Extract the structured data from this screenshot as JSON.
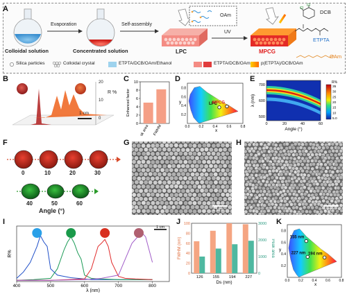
{
  "panels": {
    "a": "A",
    "b": "B",
    "c": "C",
    "d": "D",
    "e": "E",
    "f": "F",
    "g": "G",
    "h": "H",
    "i": "I",
    "j": "J",
    "k": "K"
  },
  "schematic": {
    "step1": "Colloidal solution",
    "arrow1": "Evaporation",
    "step2": "Concentrated solution",
    "arrow2": "Self-assembly",
    "step3": "LPC",
    "arrow3": "UV",
    "step4": "MPCG",
    "oam_inset": "OAm",
    "dcb": "DCB",
    "etpta": "ETPTA",
    "oam": "OAm",
    "legend": [
      {
        "label": "Silica particles"
      },
      {
        "label": "Colloidal crystal"
      },
      {
        "label": "ETPTA/DCB/OAm/Ethanol",
        "color": "#9ed3ee"
      },
      {
        "label": "ETPTA/DCB/OAm",
        "color": "#e13c3c"
      },
      {
        "label": "p(ETPTA)/DCB/OAm",
        "color": "#f0a020"
      }
    ]
  },
  "panel_b": {
    "ylabel": "R %",
    "scale": "1 cm",
    "ticks": [
      "20",
      "10",
      "0"
    ]
  },
  "chart_data": [
    {
      "id": "C",
      "type": "bar",
      "categories": [
        "Peak area",
        "FWHM"
      ],
      "values": [
        5.0,
        8.2
      ],
      "ylabel": "Enhanced factor",
      "ylim": [
        0,
        10
      ],
      "yticks": [
        "0",
        "2",
        "4",
        "6",
        "8",
        "10"
      ],
      "color": "#f59f86"
    },
    {
      "id": "D",
      "type": "scatter",
      "xlabel": "x",
      "ylabel": "y",
      "points": [
        {
          "label": "LPC",
          "x": 0.46,
          "y": 0.36
        },
        {
          "label": "MPCG",
          "x": 0.57,
          "y": 0.38
        }
      ],
      "xticks": [
        "0.0",
        "0.2",
        "0.4",
        "0.6",
        "0.8"
      ],
      "yticks": [
        "0.2",
        "0.4",
        "0.6",
        "0.8"
      ]
    },
    {
      "id": "E",
      "type": "heatmap",
      "xlabel": "Angle (°)",
      "ylabel": "λ (nm)",
      "xticks": [
        "0",
        "20",
        "40",
        "60"
      ],
      "yticks": [
        "700",
        "600",
        "500"
      ],
      "colorbar_title": "R%",
      "colorbar_ticks": [
        "35",
        "30",
        "25",
        "20",
        "15",
        "10",
        "5.0"
      ]
    },
    {
      "id": "I",
      "type": "line",
      "xlabel": "λ (nm)",
      "ylabel": "R%",
      "xticks": [
        "400",
        "500",
        "600",
        "700",
        "800"
      ],
      "scale": "1 cm",
      "series": [
        {
          "color": "#1f4fc8",
          "x": [
            400,
            420,
            440,
            460,
            470,
            480,
            490,
            500,
            520,
            540,
            560,
            580,
            600,
            620,
            650,
            700,
            750,
            800
          ],
          "y": [
            0.05,
            0.15,
            0.3,
            0.55,
            0.72,
            0.62,
            0.55,
            0.2,
            0.1,
            0.08,
            0.06,
            0.05,
            0.04,
            0.03,
            0.03,
            0.03,
            0.03,
            0.03
          ]
        },
        {
          "color": "#1a9a55",
          "x": [
            400,
            450,
            500,
            520,
            540,
            550,
            560,
            570,
            580,
            590,
            600,
            620,
            650,
            700,
            750,
            800
          ],
          "y": [
            0.02,
            0.03,
            0.05,
            0.2,
            0.5,
            0.62,
            0.7,
            0.6,
            0.45,
            0.35,
            0.1,
            0.05,
            0.04,
            0.03,
            0.03,
            0.03
          ]
        },
        {
          "color": "#e12b2b",
          "x": [
            400,
            500,
            600,
            620,
            640,
            650,
            660,
            670,
            680,
            700,
            720,
            750,
            800
          ],
          "y": [
            0.02,
            0.02,
            0.04,
            0.2,
            0.55,
            0.6,
            0.66,
            0.55,
            0.3,
            0.08,
            0.05,
            0.04,
            0.03
          ]
        },
        {
          "color": "#a05cc8",
          "x": [
            400,
            500,
            600,
            650,
            700,
            720,
            740,
            760,
            770,
            780,
            790,
            800
          ],
          "y": [
            0.02,
            0.02,
            0.03,
            0.05,
            0.1,
            0.35,
            0.6,
            0.72,
            0.76,
            0.7,
            0.5,
            0.3
          ]
        }
      ]
    },
    {
      "id": "J",
      "type": "bar",
      "categories": [
        "126",
        "155",
        "194",
        "227"
      ],
      "xlabel": "Ds (nm)",
      "series": [
        {
          "name": "FWHM",
          "values": [
            64,
            85,
            100,
            98
          ],
          "color": "#f5a582"
        },
        {
          "name": "Peak area",
          "values": [
            1000,
            1480,
            1740,
            1950
          ],
          "color": "#4fb8a0"
        }
      ],
      "ylabel_left": "FWHM (nm)",
      "ylabel_right": "Peak area",
      "ylim_left": [
        0,
        100
      ],
      "ylim_right": [
        0,
        3000
      ],
      "yticks_left": [
        "0",
        "20",
        "40",
        "60",
        "80",
        "100"
      ],
      "yticks_right": [
        "0",
        "1000",
        "2000",
        "3000"
      ]
    },
    {
      "id": "K",
      "type": "scatter",
      "xlabel": "x",
      "ylabel": "y",
      "points": [
        {
          "label": "155 nm",
          "x": 0.28,
          "y": 0.62
        },
        {
          "label": "227 nm",
          "x": 0.3,
          "y": 0.35
        },
        {
          "label": "194 nm",
          "x": 0.55,
          "y": 0.34
        }
      ],
      "xticks": [
        "0.0",
        "0.2",
        "0.4",
        "0.6",
        "0.8"
      ],
      "yticks": [
        "0.2",
        "0.4",
        "0.6",
        "0.8"
      ]
    }
  ],
  "panel_f": {
    "angles_top": [
      "0",
      "10",
      "20",
      "30"
    ],
    "angles_bottom": [
      "40",
      "50",
      "60"
    ],
    "title": "Angle (°)"
  },
  "panel_g": {
    "scale": "1 μm"
  },
  "panel_h": {
    "scale": "1 μm"
  }
}
